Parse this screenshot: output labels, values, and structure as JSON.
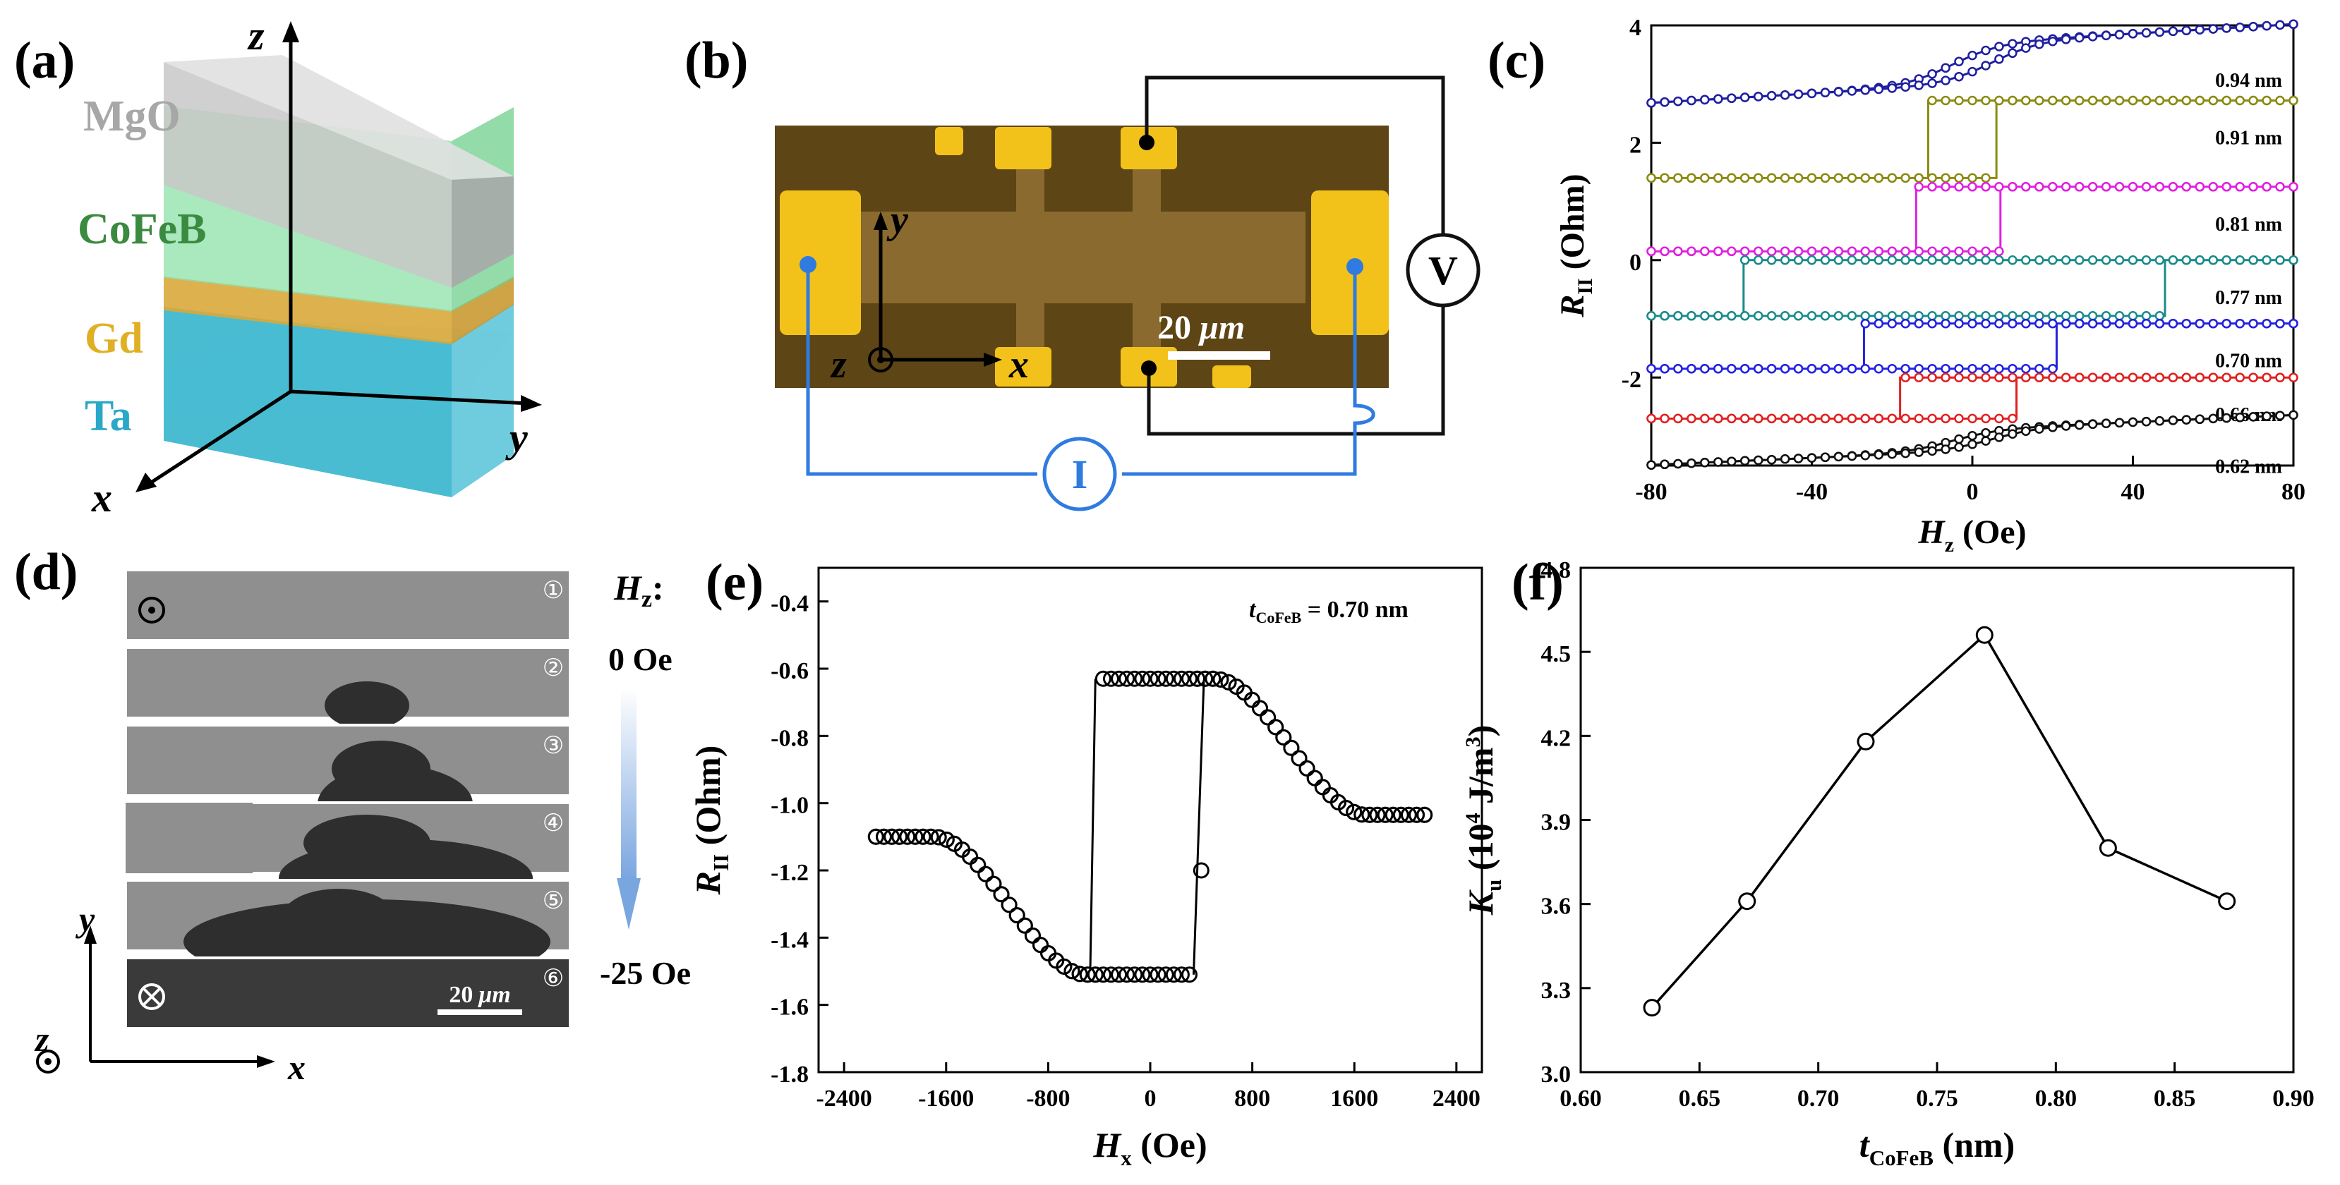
{
  "panel_labels": {
    "a": "(a)",
    "b": "(b)",
    "c": "(c)",
    "d": "(d)",
    "e": "(e)",
    "f": "(f)"
  },
  "panel_a": {
    "layers": [
      "MgO",
      "CoFeB",
      "Gd",
      "Ta"
    ],
    "axes": {
      "x": "x",
      "y": "y",
      "z": "z"
    },
    "colors": {
      "mgo": "#b9b9b9",
      "cofeb": "#6fcf8c",
      "gd": "#d9a83a",
      "ta": "#3fb8d0",
      "mgo_text": "#a7a7a7",
      "cofeb_text": "#3a8a3f",
      "gd_text": "#e0b024",
      "ta_text": "#2aa8c8"
    }
  },
  "panel_b": {
    "voltmeter": "V",
    "current_source": "I",
    "axes": {
      "x": "x",
      "y": "y",
      "z": "z"
    },
    "scale_value": "20",
    "scale_unit": "μm",
    "colors": {
      "pad": "#f2c21a",
      "film": "#8a6a2e",
      "substrate": "#5e4515",
      "wire_black": "#111111",
      "wire_blue": "#2f7be0"
    }
  },
  "panel_d": {
    "field_label": "H",
    "field_sub": "z",
    "field_start": "0 Oe",
    "field_end": "-25 Oe",
    "frames": [
      "①",
      "②",
      "③",
      "④",
      "⑤",
      "⑥"
    ],
    "scale_value": "20",
    "scale_unit": "μm",
    "axes": {
      "x": "x",
      "y": "y",
      "z": "z"
    }
  },
  "chart_data": [
    {
      "id": "c",
      "type": "line",
      "title": "",
      "xlabel": "H",
      "xlabel_sub": "z",
      "xlabel_unit": " (Oe)",
      "ylabel": "R",
      "ylabel_sub": "II",
      "ylabel_unit": " (Ohm)",
      "xlim": [
        -80,
        80
      ],
      "ylim": [
        -3.5,
        4
      ],
      "xticks": [
        -80,
        -40,
        0,
        40,
        80
      ],
      "yticks": [
        -2,
        0,
        2,
        4
      ],
      "series": [
        {
          "name": "0.94 nm",
          "color": "#1f1fa0",
          "high": 3.7,
          "low": 3.0,
          "hc": 5,
          "slope": 0.004,
          "kind": "tilt"
        },
        {
          "name": "0.91 nm",
          "color": "#8a8a10",
          "high": 2.72,
          "low": 1.4,
          "hc": 6,
          "slope": 0.001,
          "kind": "square",
          "left_switch": -11,
          "right_switch": 6
        },
        {
          "name": "0.81 nm",
          "color": "#e020e0",
          "high": 1.25,
          "low": 0.15,
          "hc": 14,
          "slope": 0.0,
          "kind": "square",
          "left_switch": -14,
          "right_switch": 7
        },
        {
          "name": "0.77 nm",
          "color": "#1a8a8a",
          "high": 0.0,
          "low": -0.95,
          "hc": 52,
          "slope": 0.0,
          "kind": "square",
          "left_switch": -57,
          "right_switch": 48
        },
        {
          "name": "0.70 nm",
          "color": "#2222e0",
          "high": -1.08,
          "low": -1.85,
          "hc": 24,
          "slope": 0.0,
          "kind": "square",
          "left_switch": -27,
          "right_switch": 21
        },
        {
          "name": "0.66 nm",
          "color": "#e02020",
          "high": -2.0,
          "low": -2.7,
          "hc": 12,
          "slope": 0.0,
          "kind": "square",
          "left_switch": -18,
          "right_switch": 11
        },
        {
          "name": "0.62 nm",
          "color": "#111111",
          "high": -2.88,
          "low": -3.25,
          "hc": 5,
          "slope": 0.003,
          "kind": "tilt"
        }
      ]
    },
    {
      "id": "e",
      "type": "scatter",
      "title": "",
      "annotation": "t",
      "annotation_sub": "CoFeB",
      "annotation_value": " = 0.70 nm",
      "xlabel": "H",
      "xlabel_sub": "x",
      "xlabel_unit": " (Oe)",
      "ylabel": "R",
      "ylabel_sub": "II",
      "ylabel_unit": " (Ohm)",
      "xlim": [
        -2600,
        2600
      ],
      "ylim": [
        -1.8,
        -0.3
      ],
      "xticks": [
        -2400,
        -1600,
        -800,
        0,
        800,
        1600,
        2400
      ],
      "yticks": [
        -1.8,
        -1.6,
        -1.4,
        -1.2,
        -1.0,
        -0.8,
        -0.6,
        -0.4
      ],
      "high": -0.63,
      "low": -1.51,
      "sat_left": -1.1,
      "sat_right": -1.035,
      "x_extent": 2150,
      "switch_down": -430,
      "switch_up": 340,
      "mid_point": [
        400,
        -1.2
      ]
    },
    {
      "id": "f",
      "type": "line",
      "title": "",
      "xlabel": "t",
      "xlabel_sub": "CoFeB",
      "xlabel_unit": " (nm)",
      "ylabel": "K",
      "ylabel_sub": "u",
      "ylabel_unit": " (10",
      "ylabel_sup": "4",
      "ylabel_unit2": " J/m",
      "ylabel_sup2": "3",
      "ylabel_end": ")",
      "xlim": [
        0.6,
        0.9
      ],
      "ylim": [
        3.0,
        4.8
      ],
      "xticks": [
        0.6,
        0.65,
        0.7,
        0.75,
        0.8,
        0.85,
        0.9
      ],
      "yticks": [
        3.0,
        3.3,
        3.6,
        3.9,
        4.2,
        4.5,
        4.8
      ],
      "x": [
        0.63,
        0.67,
        0.72,
        0.77,
        0.822,
        0.872
      ],
      "y": [
        3.23,
        3.61,
        4.18,
        4.56,
        3.8,
        3.61
      ]
    }
  ]
}
